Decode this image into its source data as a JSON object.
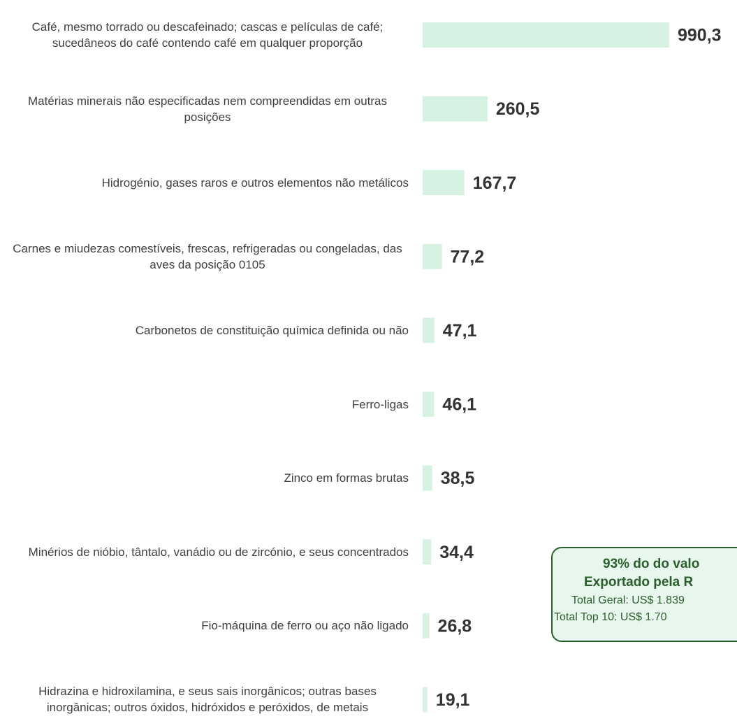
{
  "chart_data": {
    "type": "bar",
    "orientation": "horizontal",
    "categories": [
      "Café, mesmo torrado ou descafeinado; cascas e películas de café; sucedâneos do café contendo café em qualquer proporção",
      "Matérias minerais não especificadas nem compreendidas em outras posições",
      "Hidrogénio, gases raros e outros elementos não metálicos",
      "Carnes e miudezas comestíveis, frescas, refrigeradas ou congeladas, das aves da posição 0105",
      "Carbonetos de constituição química definida ou não",
      "Ferro-ligas",
      "Zinco em formas brutas",
      "Minérios de nióbio, tântalo, vanádio ou de zircónio, e seus concentrados",
      "Fio-máquina de ferro ou aço não ligado",
      "Hidrazina e hidroxilamina, e seus sais inorgânicos; outras bases inorgânicas; outros óxidos, hidróxidos e peróxidos, de metais"
    ],
    "values": [
      990.3,
      260.5,
      167.7,
      77.2,
      47.1,
      46.1,
      38.5,
      34.4,
      26.8,
      19.1
    ],
    "value_labels": [
      "990,3",
      "260,5",
      "167,7",
      "77,2",
      "47,1",
      "46,1",
      "38,5",
      "34,4",
      "26,8",
      "19,1"
    ],
    "color": "#d6f2e2",
    "annotation": [
      "93% do do valo",
      "Exportado pela R",
      "Total Geral: US$ 1.839",
      "Total Top 10: US$ 1.70"
    ]
  }
}
